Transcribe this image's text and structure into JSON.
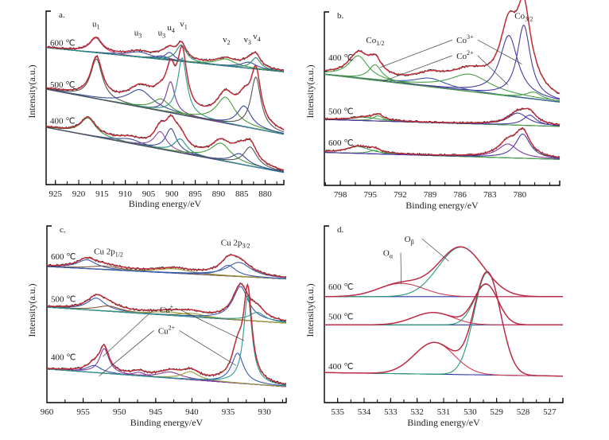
{
  "figure": {
    "y_label": "Intensity(a.u.)",
    "x_label": "Binding energy/eV"
  },
  "chart_data": [
    {
      "id": "a",
      "type": "line",
      "panel_label": "a.",
      "title": "",
      "xlabel": "Binding energy/eV",
      "ylabel": "Intensity(a.u.)",
      "xlim": [
        927,
        876
      ],
      "x_reversed": true,
      "ylim": [
        0,
        100
      ],
      "xticks": [
        925,
        920,
        915,
        910,
        905,
        900,
        895,
        890,
        885,
        880
      ],
      "tick_labels": [
        "925",
        "920",
        "915",
        "910",
        "905",
        "900",
        "895",
        "890",
        "885",
        "880"
      ],
      "peak_labels": [
        {
          "text": "u",
          "sub": "1",
          "x": 916.3,
          "y": 91
        },
        {
          "text": "u",
          "sub": "3",
          "x": 907.3,
          "y": 86
        },
        {
          "text": "u",
          "sub": "3",
          "x": 902.2,
          "y": 86
        },
        {
          "text": "u",
          "sub": "4",
          "x": 900.2,
          "y": 89
        },
        {
          "text": "v",
          "sub": "1",
          "x": 897.5,
          "y": 91
        },
        {
          "text": "v",
          "sub": "2",
          "x": 888.3,
          "y": 82
        },
        {
          "text": "v",
          "sub": "3",
          "x": 883.8,
          "y": 82
        },
        {
          "text": "v",
          "sub": "4",
          "x": 881.8,
          "y": 84
        }
      ],
      "series": [
        {
          "name": "600 ℃",
          "label_y": 80,
          "baseline": {
            "start": 79,
            "end": 65
          },
          "peaks": [
            {
              "center": 916.3,
              "height": 8.5,
              "width": 1.6,
              "color": "#c8457a"
            },
            {
              "center": 907.0,
              "height": 3.0,
              "width": 3.0,
              "color": "#3a4aa0"
            },
            {
              "center": 902.2,
              "height": 2.0,
              "width": 1.8,
              "color": "#3a4aa0"
            },
            {
              "center": 900.5,
              "height": 4.5,
              "width": 1.2,
              "color": "#3a4aa0"
            },
            {
              "center": 898.0,
              "height": 9.5,
              "width": 1.3,
              "color": "#2a8a7a"
            },
            {
              "center": 888.5,
              "height": 4.0,
              "width": 2.5,
              "color": "#4a9a3a"
            },
            {
              "center": 883.5,
              "height": 3.5,
              "width": 2.0,
              "color": "#3a4aa0"
            },
            {
              "center": 882.0,
              "height": 6.5,
              "width": 1.2,
              "color": "#2a8a7a"
            }
          ]
        },
        {
          "name": "500 ℃",
          "label_y": 56,
          "baseline": {
            "start": 55,
            "end": 29
          },
          "peaks": [
            {
              "center": 916.2,
              "height": 23,
              "width": 1.5,
              "color": "#555555"
            },
            {
              "center": 906.8,
              "height": 10,
              "width": 3.2,
              "color": "#3a4aa0"
            },
            {
              "center": 902.3,
              "height": 7,
              "width": 2.2,
              "color": "#4a9a3a"
            },
            {
              "center": 900.3,
              "height": 18,
              "width": 1.1,
              "color": "#7a3aa0"
            },
            {
              "center": 897.8,
              "height": 33,
              "width": 1.2,
              "color": "#2a9a8a"
            },
            {
              "center": 888.5,
              "height": 15,
              "width": 2.4,
              "color": "#4a9a3a"
            },
            {
              "center": 884.5,
              "height": 12,
              "width": 1.8,
              "color": "#3a4aa0"
            },
            {
              "center": 882.0,
              "height": 30,
              "width": 1.3,
              "color": "#555555"
            }
          ]
        },
        {
          "name": "400 ℃",
          "label_y": 35,
          "baseline": {
            "start": 33,
            "end": 7
          },
          "peaks": [
            {
              "center": 918.0,
              "height": 10,
              "width": 2.0,
              "color": "#3a9a3a"
            },
            {
              "center": 909.0,
              "height": 2.5,
              "width": 3.0,
              "color": "#3a4aa0"
            },
            {
              "center": 902.5,
              "height": 10,
              "width": 1.6,
              "color": "#8a4aa0"
            },
            {
              "center": 900.2,
              "height": 13,
              "width": 1.4,
              "color": "#3a4aa0"
            },
            {
              "center": 898.2,
              "height": 8,
              "width": 1.6,
              "color": "#2a8a8a"
            },
            {
              "center": 889.5,
              "height": 10,
              "width": 2.6,
              "color": "#4a9a3a"
            },
            {
              "center": 885.5,
              "height": 6,
              "width": 2.0,
              "color": "#3a4aa0"
            },
            {
              "center": 883.2,
              "height": 11,
              "width": 1.7,
              "color": "#555555"
            }
          ]
        }
      ]
    },
    {
      "id": "b",
      "type": "line",
      "panel_label": "b.",
      "title": "",
      "xlabel": "Binding energy/eV",
      "ylabel": "Intensity(a.u.)",
      "xlim": [
        799.6,
        776.0
      ],
      "x_reversed": true,
      "ylim": [
        0,
        100
      ],
      "xticks": [
        798,
        795,
        792,
        789,
        786,
        783,
        780
      ],
      "tick_labels": [
        "798",
        "795",
        "792",
        "789",
        "786",
        "783",
        "780"
      ],
      "peak_labels": [
        {
          "text": "Co",
          "sub": "1/2",
          "x": 794.5,
          "y": 82
        },
        {
          "text": "Co",
          "sub": "3/2",
          "x": 779.6,
          "y": 96
        }
      ],
      "annotations": [
        {
          "text": "Co",
          "sup": "3+",
          "x": 785.5,
          "y": 82,
          "targets": [
            {
              "x": 794.0,
              "y": 68
            },
            {
              "x": 779.8,
              "y": 70
            }
          ]
        },
        {
          "text": "Co",
          "sup": "2+",
          "x": 785.5,
          "y": 73,
          "targets": [
            {
              "x": 793.7,
              "y": 60
            },
            {
              "x": 781.2,
              "y": 58
            }
          ]
        }
      ],
      "series": [
        {
          "name": "400 ℃",
          "label_y": 72,
          "baseline": {
            "start": 64,
            "end": 48
          },
          "peaks": [
            {
              "center": 796.2,
              "height": 13,
              "width": 1.2,
              "color": "#4aa04a"
            },
            {
              "center": 794.5,
              "height": 9,
              "width": 0.8,
              "color": "#4aa04a"
            },
            {
              "center": 789.0,
              "height": 5,
              "width": 2.0,
              "color": "#3a5ab0"
            },
            {
              "center": 785.0,
              "height": 10,
              "width": 2.5,
              "color": "#4aa04a"
            },
            {
              "center": 781.1,
              "height": 35,
              "width": 1.1,
              "color": "#4a3aa0"
            },
            {
              "center": 779.6,
              "height": 42,
              "width": 0.8,
              "color": "#4a3aa0"
            },
            {
              "center": 778.6,
              "height": 4,
              "width": 1.0,
              "color": "#4aa04a"
            }
          ]
        },
        {
          "name": "500 ℃",
          "label_y": 41,
          "baseline": {
            "start": 38,
            "end": 34
          },
          "peaks": [
            {
              "center": 795.5,
              "height": 2,
              "width": 1.6,
              "color": "#4aa04a"
            },
            {
              "center": 794.2,
              "height": 3,
              "width": 0.6,
              "color": "#4aa04a"
            },
            {
              "center": 780.2,
              "height": 7,
              "width": 1.2,
              "color": "#4a3aa0"
            },
            {
              "center": 779.0,
              "height": 6,
              "width": 0.8,
              "color": "#4a3aa0"
            }
          ]
        },
        {
          "name": "600 ℃",
          "label_y": 23,
          "baseline": {
            "start": 19,
            "end": 15
          },
          "peaks": [
            {
              "center": 796.2,
              "height": 4,
              "width": 1.4,
              "color": "#4aa04a"
            },
            {
              "center": 794.6,
              "height": 2,
              "width": 0.7,
              "color": "#4aa04a"
            },
            {
              "center": 781.2,
              "height": 8,
              "width": 1.2,
              "color": "#7a3aa0"
            },
            {
              "center": 779.7,
              "height": 14,
              "width": 0.9,
              "color": "#4a3aa0"
            }
          ]
        }
      ]
    },
    {
      "id": "c",
      "type": "line",
      "panel_label": "c.",
      "title": "",
      "xlabel": "Binding energy/eV",
      "ylabel": "Intensity(a.u.)",
      "xlim": [
        960.0,
        927.0
      ],
      "x_reversed": true,
      "ylim": [
        0,
        100
      ],
      "xticks": [
        960,
        955,
        950,
        945,
        940,
        935,
        930
      ],
      "tick_labels": [
        "960",
        "955",
        "950",
        "945",
        "940",
        "935",
        "930"
      ],
      "peak_labels": [
        {
          "text": "Cu 2p",
          "sub": "1/2",
          "x": 951.5,
          "y": 84
        },
        {
          "text": "Cu 2p",
          "sub": "3/2",
          "x": 934.0,
          "y": 89
        }
      ],
      "annotations": [
        {
          "text": "Cu",
          "sup": "+",
          "x": 943.5,
          "y": 51,
          "targets": [
            {
              "x": 952.3,
              "y": 26
            },
            {
              "x": 932.8,
              "y": 35
            }
          ]
        },
        {
          "text": "Cu",
          "sup": "2+",
          "x": 943.5,
          "y": 39,
          "targets": [
            {
              "x": 952.8,
              "y": 15
            },
            {
              "x": 933.9,
              "y": 21
            }
          ]
        }
      ],
      "series": [
        {
          "name": "600 ℃",
          "label_y": 81,
          "baseline": {
            "start": 77,
            "end": 70
          },
          "peaks": [
            {
              "center": 954.5,
              "height": 5,
              "width": 1.6,
              "color": "#3a5ab0"
            },
            {
              "center": 952.0,
              "height": 2,
              "width": 2.5,
              "color": "#8a5a3a"
            },
            {
              "center": 942.5,
              "height": 2.5,
              "width": 2.8,
              "color": "#9a9a3a"
            },
            {
              "center": 935.0,
              "height": 6,
              "width": 1.3,
              "color": "#3a5ab0"
            },
            {
              "center": 933.5,
              "height": 8,
              "width": 2.0,
              "color": "#3a5ab0"
            }
          ]
        },
        {
          "name": "500 ℃",
          "label_y": 57,
          "baseline": {
            "start": 54,
            "end": 45
          },
          "peaks": [
            {
              "center": 953.2,
              "height": 7,
              "width": 1.5,
              "color": "#3a5ab0"
            },
            {
              "center": 951.5,
              "height": 3,
              "width": 2.0,
              "color": "#8a5a3a"
            },
            {
              "center": 943.0,
              "height": 2,
              "width": 3.0,
              "color": "#9a9a3a"
            },
            {
              "center": 940.0,
              "height": 2,
              "width": 2.0,
              "color": "#9a9a3a"
            },
            {
              "center": 933.3,
              "height": 19,
              "width": 1.3,
              "color": "#3a5ab0"
            },
            {
              "center": 931.0,
              "height": 5,
              "width": 1.3,
              "color": "#2a9a8a"
            }
          ]
        },
        {
          "name": "400 ℃",
          "label_y": 24,
          "baseline": {
            "start": 19,
            "end": 9
          },
          "peaks": [
            {
              "center": 953.5,
              "height": 4,
              "width": 1.2,
              "color": "#3a5ab0"
            },
            {
              "center": 952.1,
              "height": 14,
              "width": 0.8,
              "color": "#8a3aa0"
            },
            {
              "center": 947.3,
              "height": 2,
              "width": 1.0,
              "color": "#8a3aa0"
            },
            {
              "center": 943.0,
              "height": 3.5,
              "width": 1.8,
              "color": "#8a3aa0"
            },
            {
              "center": 940.2,
              "height": 4.5,
              "width": 1.4,
              "color": "#9a9a3a"
            },
            {
              "center": 933.7,
              "height": 17,
              "width": 1.0,
              "color": "#3a5ab0"
            },
            {
              "center": 932.3,
              "height": 50,
              "width": 0.7,
              "color": "#2a9a8a"
            }
          ]
        }
      ]
    },
    {
      "id": "d",
      "type": "line",
      "panel_label": "d.",
      "title": "",
      "xlabel": "Binding energy/eV",
      "ylabel": "Intensity(a.u.)",
      "xlim": [
        535.5,
        526.5
      ],
      "x_reversed": true,
      "ylim": [
        0,
        100
      ],
      "xticks": [
        535,
        534,
        533,
        532,
        531,
        530,
        529,
        528,
        527
      ],
      "tick_labels": [
        "535",
        "534",
        "533",
        "532",
        "531",
        "530",
        "529",
        "528",
        "527"
      ],
      "annotations": [
        {
          "text": "O",
          "sub": "α",
          "x": 533.1,
          "y": 83,
          "targets": [
            {
              "x": 532.6,
              "y": 67
            }
          ]
        },
        {
          "text": "O",
          "sub": "β",
          "x": 532.3,
          "y": 91,
          "targets": [
            {
              "x": 530.8,
              "y": 80
            }
          ]
        }
      ],
      "series": [
        {
          "name": "600 ℃",
          "label_y": 64,
          "baseline": {
            "start": 60,
            "end": 60
          },
          "peaks": [
            {
              "center": 532.6,
              "height": 7.5,
              "width": 0.85,
              "color": "#d03a50"
            },
            {
              "center": 530.35,
              "height": 28,
              "width": 0.85,
              "color": "#2a9a7a"
            }
          ]
        },
        {
          "name": "500 ℃",
          "label_y": 47,
          "baseline": {
            "start": 44,
            "end": 44
          },
          "peaks": [
            {
              "center": 531.4,
              "height": 7,
              "width": 0.75,
              "color": "#d03a50"
            },
            {
              "center": 529.4,
              "height": 23,
              "width": 0.45,
              "color": "#2a9a7a"
            }
          ]
        },
        {
          "name": "400 ℃",
          "label_y": 19,
          "baseline": {
            "start": 17,
            "end": 15
          },
          "peaks": [
            {
              "center": 531.35,
              "height": 18,
              "width": 0.75,
              "color": "#d03a50"
            },
            {
              "center": 529.35,
              "height": 58,
              "width": 0.5,
              "color": "#2a9a7a"
            }
          ]
        }
      ]
    }
  ],
  "colors": {
    "envelope": "#d62a3a",
    "raw_data": "#222222",
    "baseline": "#2a3aa0",
    "axis": "#000000"
  }
}
